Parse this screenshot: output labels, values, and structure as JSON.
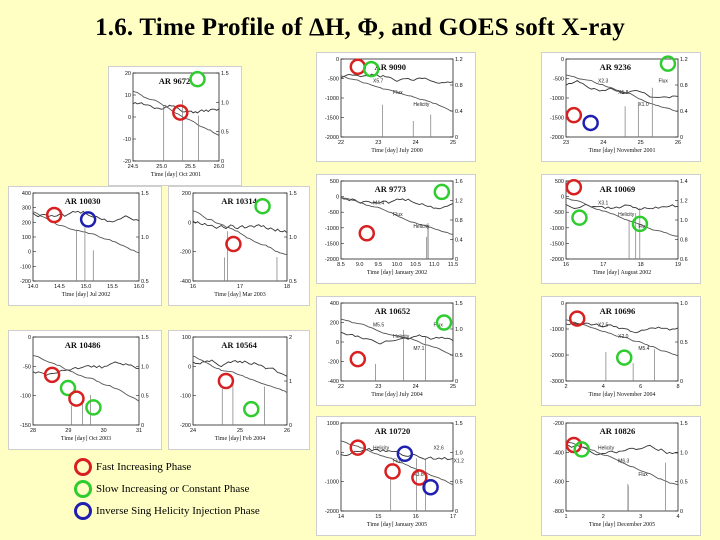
{
  "title": "1.6. Time Profile of ΔH, Φ, and GOES soft X-ray",
  "legend": [
    {
      "label": "Fast Increasing Phase",
      "color": "#d82020"
    },
    {
      "label": "Slow Increasing or Constant Phase",
      "color": "#2ecc2e"
    },
    {
      "label": "Inverse Sing Helicity Injection Phase",
      "color": "#2020b0"
    }
  ],
  "colors": {
    "fast": "#d82020",
    "slow": "#2ecc2e",
    "inverse": "#2020b0",
    "background": "#ffffc4"
  },
  "panels": [
    {
      "id": "ar9672",
      "region": "AR 9672",
      "xlabel": "Time [day]  Oct 2001",
      "xticks": [
        "24.5",
        "25.0",
        "25.5",
        "26.0"
      ],
      "yleft": [
        "20",
        "10",
        "0",
        "-10",
        "-20"
      ],
      "yright": [
        "1.5",
        "1.0",
        "0.5",
        "0"
      ],
      "markers": [
        {
          "c": "fast",
          "nx": 0.55,
          "ny": 0.45
        },
        {
          "c": "slow",
          "nx": 0.75,
          "ny": 0.07
        }
      ]
    },
    {
      "id": "ar9090",
      "region": "AR 9090",
      "xlabel": "Time [day]  July 2000",
      "xticks": [
        "22",
        "23",
        "24",
        "25"
      ],
      "yleft": [
        "0",
        "-500",
        "-1000",
        "-1500",
        "-2000"
      ],
      "yright": [
        "1.2",
        "0.8",
        "0.4",
        "0"
      ],
      "markers": [
        {
          "c": "fast",
          "nx": 0.15,
          "ny": 0.1
        },
        {
          "c": "slow",
          "nx": 0.27,
          "ny": 0.13
        }
      ],
      "labels": [
        "X5.7",
        "Flux",
        "Helicity"
      ]
    },
    {
      "id": "ar9236",
      "region": "AR 9236",
      "xlabel": "Time [day]  November 2001",
      "xticks": [
        "23",
        "24",
        "25",
        "26"
      ],
      "yleft": [
        "0",
        "-500",
        "-1000",
        "-1500",
        "-2000"
      ],
      "yright": [
        "1.2",
        "0.8",
        "0.4",
        "0"
      ],
      "markers": [
        {
          "c": "fast",
          "nx": 0.07,
          "ny": 0.72
        },
        {
          "c": "inverse",
          "nx": 0.22,
          "ny": 0.82
        },
        {
          "c": "slow",
          "nx": 0.91,
          "ny": 0.06
        }
      ],
      "labels": [
        "X2.3",
        "X1.8",
        "X1.0",
        "Flux"
      ]
    },
    {
      "id": "ar10030",
      "region": "AR 10030",
      "xlabel": "Time [day]  Jul 2002",
      "xticks": [
        "14.0",
        "14.5",
        "15.0",
        "15.5",
        "16.0"
      ],
      "yleft": [
        "400",
        "300",
        "200",
        "100",
        "0",
        "-100",
        "-200"
      ],
      "yright": [
        "1.5",
        "1.0",
        "0.5"
      ],
      "markers": [
        {
          "c": "fast",
          "nx": 0.2,
          "ny": 0.25
        },
        {
          "c": "inverse",
          "nx": 0.52,
          "ny": 0.3
        }
      ]
    },
    {
      "id": "ar10314",
      "region": "AR 10314",
      "xlabel": "Time [day]  Mar 2003",
      "xticks": [
        "16",
        "17",
        "18"
      ],
      "yleft": [
        "200",
        "0",
        "-200",
        "-400"
      ],
      "yright": [
        "1.5",
        "1.0",
        "0.5"
      ],
      "markers": [
        {
          "c": "fast",
          "nx": 0.43,
          "ny": 0.58
        },
        {
          "c": "slow",
          "nx": 0.74,
          "ny": 0.15
        }
      ]
    },
    {
      "id": "ar9773",
      "region": "AR 9773",
      "xlabel": "Time [day]  January 2002",
      "xticks": [
        "8.5",
        "9.0",
        "9.5",
        "10.0",
        "10.5",
        "11.0",
        "11.5"
      ],
      "yleft": [
        "500",
        "0",
        "-500",
        "-1000",
        "-1500",
        "-2000"
      ],
      "yright": [
        "1.6",
        "1.2",
        "0.8",
        "0.4",
        "0"
      ],
      "markers": [
        {
          "c": "fast",
          "nx": 0.23,
          "ny": 0.67
        },
        {
          "c": "slow",
          "nx": 0.9,
          "ny": 0.14
        }
      ],
      "labels": [
        "M4.4",
        "Flux",
        "Helicity"
      ]
    },
    {
      "id": "ar10069",
      "region": "AR 10069",
      "xlabel": "Time [day]  August 2002",
      "xticks": [
        "16",
        "17",
        "18",
        "19"
      ],
      "yleft": [
        "500",
        "0",
        "-500",
        "-1000",
        "-1500",
        "-2000"
      ],
      "yright": [
        "1.4",
        "1.2",
        "1.0",
        "0.8",
        "0.6"
      ],
      "markers": [
        {
          "c": "fast",
          "nx": 0.07,
          "ny": 0.08
        },
        {
          "c": "slow",
          "nx": 0.12,
          "ny": 0.47
        },
        {
          "c": "slow",
          "nx": 0.66,
          "ny": 0.55
        }
      ],
      "labels": [
        "X3.1",
        "Helicity",
        "Flux"
      ]
    },
    {
      "id": "ar10486",
      "region": "AR 10486",
      "xlabel": "Time [day]  Oct 2003",
      "xticks": [
        "28",
        "29",
        "30",
        "31"
      ],
      "yleft": [
        "0",
        "-50",
        "-100",
        "-150"
      ],
      "yright": [
        "1.5",
        "1.0",
        "0.5",
        "0"
      ],
      "markers": [
        {
          "c": "fast",
          "nx": 0.18,
          "ny": 0.43
        },
        {
          "c": "slow",
          "nx": 0.33,
          "ny": 0.58
        },
        {
          "c": "fast",
          "nx": 0.41,
          "ny": 0.7
        },
        {
          "c": "slow",
          "nx": 0.57,
          "ny": 0.8
        }
      ]
    },
    {
      "id": "ar10564",
      "region": "AR 10564",
      "xlabel": "Time [day]  Feb 2004",
      "xticks": [
        "24",
        "25",
        "26"
      ],
      "yleft": [
        "100",
        "0",
        "-100",
        "-200"
      ],
      "yright": [
        "2",
        "1",
        "0"
      ],
      "markers": [
        {
          "c": "fast",
          "nx": 0.35,
          "ny": 0.5
        },
        {
          "c": "slow",
          "nx": 0.62,
          "ny": 0.82
        }
      ]
    },
    {
      "id": "ar10652",
      "region": "AR 10652",
      "xlabel": "Time [day]  July 2004",
      "xticks": [
        "22",
        "23",
        "24",
        "25"
      ],
      "yleft": [
        "400",
        "200",
        "0",
        "-200",
        "-400"
      ],
      "yright": [
        "1.5",
        "1.0",
        "0.5",
        "0"
      ],
      "markers": [
        {
          "c": "fast",
          "nx": 0.15,
          "ny": 0.72
        },
        {
          "c": "slow",
          "nx": 0.92,
          "ny": 0.25
        }
      ],
      "labels": [
        "M5.5",
        "Helicity",
        "M7.1",
        "Flux"
      ]
    },
    {
      "id": "ar10696",
      "region": "AR 10696",
      "xlabel": "Time [day]  November 2004",
      "xticks": [
        "2",
        "4",
        "6",
        "8"
      ],
      "yleft": [
        "0",
        "-1000",
        "-2000",
        "-3000"
      ],
      "yright": [
        "1.0",
        "0.5",
        "0"
      ],
      "markers": [
        {
          "c": "fast",
          "nx": 0.1,
          "ny": 0.2
        },
        {
          "c": "slow",
          "nx": 0.52,
          "ny": 0.7
        }
      ],
      "labels": [
        "X2.5",
        "X2.0",
        "M5.4"
      ]
    },
    {
      "id": "ar10720",
      "region": "AR 10720",
      "xlabel": "Time [day]  January 2005",
      "xticks": [
        "14",
        "15",
        "16",
        "17"
      ],
      "yleft": [
        "1000",
        "0",
        "-1000",
        "-2000"
      ],
      "yright": [
        "1.5",
        "1.0",
        "0.5",
        "0"
      ],
      "markers": [
        {
          "c": "fast",
          "nx": 0.15,
          "ny": 0.28
        },
        {
          "c": "fast",
          "nx": 0.46,
          "ny": 0.55
        },
        {
          "c": "fast",
          "nx": 0.7,
          "ny": 0.62
        },
        {
          "c": "inverse",
          "nx": 0.57,
          "ny": 0.35
        },
        {
          "c": "inverse",
          "nx": 0.8,
          "ny": 0.73
        }
      ],
      "labels": [
        "Helicity",
        "Flux",
        "X3.8",
        "X2.6",
        "X1.2"
      ]
    },
    {
      "id": "ar10826",
      "region": "AR 10826",
      "xlabel": "Time [day]  December 2005",
      "xticks": [
        "1",
        "2",
        "3",
        "4"
      ],
      "yleft": [
        "-200",
        "-400",
        "-600",
        "-800"
      ],
      "yright": [
        "1.5",
        "1.0",
        "0.5",
        "0"
      ],
      "markers": [
        {
          "c": "fast",
          "nx": 0.07,
          "ny": 0.25
        },
        {
          "c": "slow",
          "nx": 0.14,
          "ny": 0.3
        }
      ],
      "labels": [
        "Helicity",
        "M6.3",
        "Flux"
      ]
    }
  ]
}
